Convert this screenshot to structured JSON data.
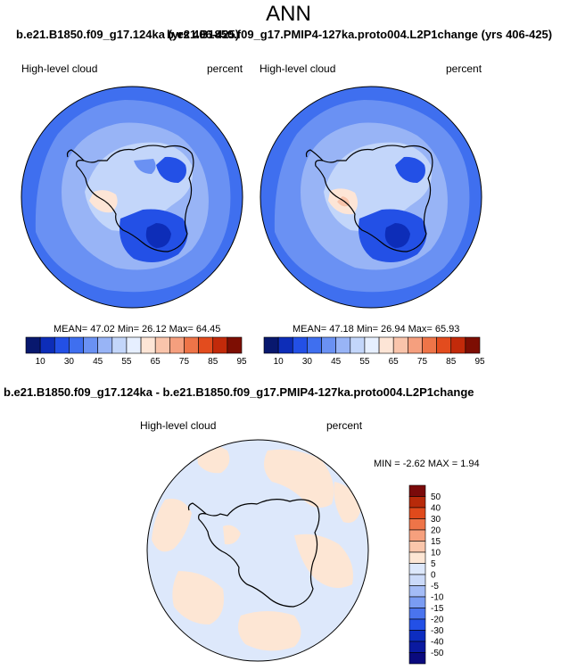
{
  "page": {
    "title": "ANN",
    "top_case_left": "b.e21.B1850.f09_g17.124ka (yrs 406-425)",
    "top_case_right": "b.e21.B1850.f09_g17.PMIP4-127ka.proto004.L2P1change (yrs 406-425)",
    "diff_title": "b.e21.B1850.f09_g17.124ka - b.e21.B1850.f09_g17.PMIP4-127ka.proto004.L2P1change"
  },
  "colors": {
    "abs_scale": [
      "#08186e",
      "#0d2db8",
      "#2350e6",
      "#3f6fef",
      "#6a91f3",
      "#98b4f6",
      "#c3d6fa",
      "#e6efff",
      "#fde5d6",
      "#f9c4ab",
      "#f59f7e",
      "#ee7448",
      "#e34c1e",
      "#c22a0a",
      "#7d0e03"
    ],
    "diff_scale": [
      "#0a0a7e",
      "#0a1aa0",
      "#0d2dc0",
      "#2350e6",
      "#4a74ee",
      "#7a9cf3",
      "#a4bcf6",
      "#cbdaf9",
      "#dde8fb",
      "#fde6d4",
      "#fac6ab",
      "#f6a07d",
      "#ee7448",
      "#e04a1c",
      "#b82a0a",
      "#7a0a0a"
    ],
    "ocean": "#5b86e6"
  },
  "panels": [
    {
      "field": "High-level cloud",
      "units": "percent",
      "stats": {
        "mean": "47.02",
        "min": "26.12",
        "max": "64.45"
      },
      "stats_text": "MEAN=  47.02   Min=   26.12   Max=   64.45"
    },
    {
      "field": "High-level cloud",
      "units": "percent",
      "stats": {
        "mean": "47.18",
        "min": "26.94",
        "max": "65.93"
      },
      "stats_text": "MEAN=  47.18   Min=   26.94   Max=   65.93"
    }
  ],
  "diff_panel": {
    "field": "High-level cloud",
    "units": "percent",
    "stats": {
      "min": "-2.62",
      "max": "1.94"
    },
    "stats_text": "MIN =  -2.62  MAX =   1.94"
  },
  "chart_data": [
    {
      "type": "heatmap",
      "title": "b.e21.B1850.f09_g17.124ka (yrs 406-425)",
      "variable": "High-level cloud",
      "units": "percent",
      "projection": "south polar stereographic",
      "colorbar_levels": [
        10,
        15,
        20,
        25,
        30,
        35,
        40,
        45,
        50,
        55,
        60,
        65,
        70,
        75,
        80,
        85,
        90,
        95
      ],
      "colorbar_tick_labels": [
        "10",
        "30",
        "45",
        "55",
        "65",
        "75",
        "85",
        "95"
      ],
      "mean": 47.02,
      "min": 26.12,
      "max": 64.45
    },
    {
      "type": "heatmap",
      "title": "b.e21.B1850.f09_g17.PMIP4-127ka.proto004.L2P1change (yrs 406-425)",
      "variable": "High-level cloud",
      "units": "percent",
      "projection": "south polar stereographic",
      "colorbar_levels": [
        10,
        15,
        20,
        25,
        30,
        35,
        40,
        45,
        50,
        55,
        60,
        65,
        70,
        75,
        80,
        85,
        90,
        95
      ],
      "colorbar_tick_labels": [
        "10",
        "30",
        "45",
        "55",
        "65",
        "75",
        "85",
        "95"
      ],
      "mean": 47.18,
      "min": 26.94,
      "max": 65.93
    },
    {
      "type": "heatmap",
      "title": "b.e21.B1850.f09_g17.124ka - b.e21.B1850.f09_g17.PMIP4-127ka.proto004.L2P1change",
      "variable": "High-level cloud",
      "units": "percent",
      "projection": "south polar stereographic",
      "colorbar_tick_labels": [
        "50",
        "40",
        "30",
        "20",
        "15",
        "10",
        "5",
        "0",
        "-5",
        "-10",
        "-15",
        "-20",
        "-30",
        "-40",
        "-50"
      ],
      "min": -2.62,
      "max": 1.94
    }
  ]
}
